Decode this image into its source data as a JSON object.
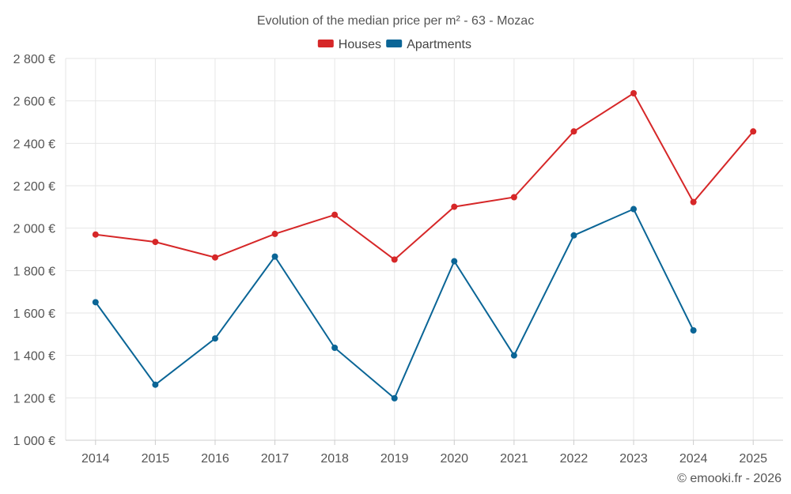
{
  "chart_data": {
    "type": "line",
    "title": "Evolution of the median price per m² - 63 - Mozac",
    "categories": [
      "2014",
      "2015",
      "2016",
      "2017",
      "2018",
      "2019",
      "2020",
      "2021",
      "2022",
      "2023",
      "2024",
      "2025"
    ],
    "series": [
      {
        "name": "Houses",
        "color": "#d62728",
        "values": [
          1970,
          1935,
          1862,
          1973,
          2063,
          1852,
          2101,
          2146,
          2456,
          2636,
          2123,
          2456
        ]
      },
      {
        "name": "Apartments",
        "color": "#0a6596",
        "values": [
          1651,
          1262,
          1480,
          1866,
          1436,
          1198,
          1844,
          1400,
          1966,
          2090,
          1518,
          null
        ]
      }
    ],
    "ylim": [
      1000,
      2800
    ],
    "yticks": [
      1000,
      1200,
      1400,
      1600,
      1800,
      2000,
      2200,
      2400,
      2600,
      2800
    ],
    "ytick_labels": [
      "1 000 €",
      "1 200 €",
      "1 400 €",
      "1 600 €",
      "1 800 €",
      "2 000 €",
      "2 200 €",
      "2 400 €",
      "2 600 €",
      "2 800 €"
    ],
    "xlabel": "",
    "ylabel": "",
    "grid": true,
    "legend_position": "top-center"
  },
  "credit": "© emooki.fr - 2026"
}
